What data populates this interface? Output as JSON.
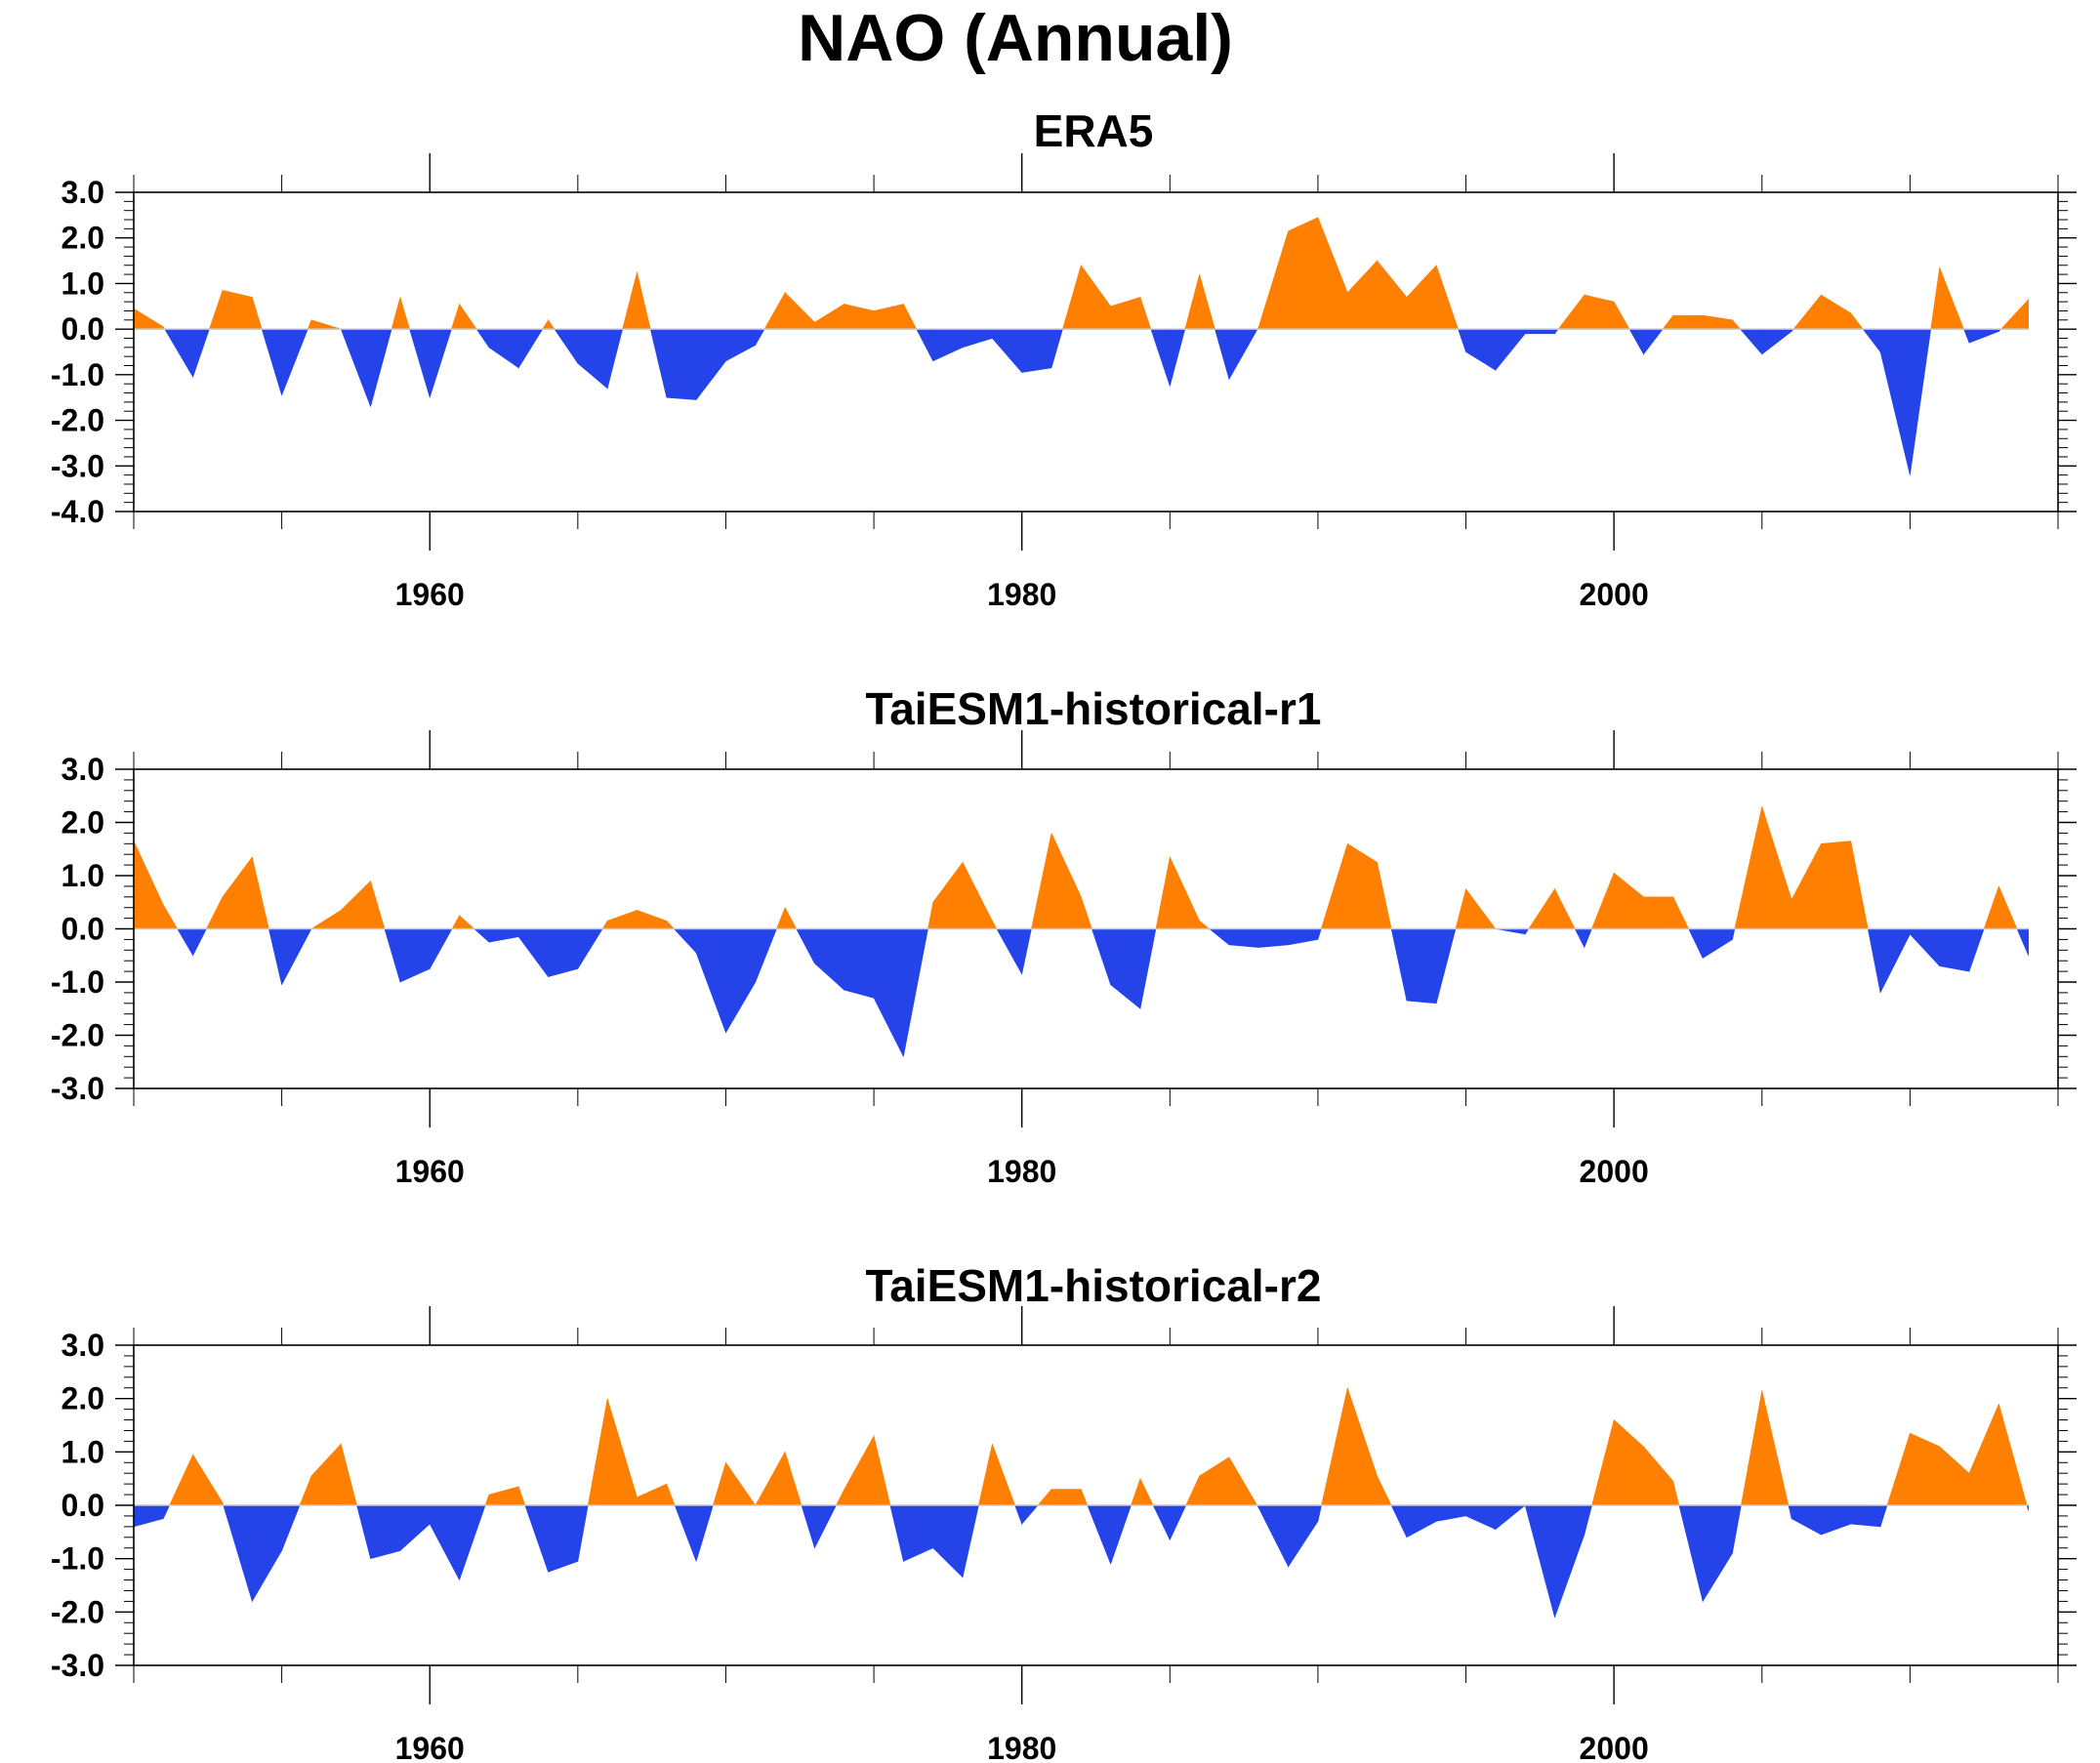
{
  "figure": {
    "title": "NAO (Annual)"
  },
  "colors": {
    "positive": "#ff8000",
    "negative": "#2444ea",
    "zero_line": "#c8c8c8",
    "axes": "#000000"
  },
  "chart_data": [
    {
      "type": "area",
      "title": "ERA5",
      "x_start": 1950,
      "x_end": 2014,
      "xlim": [
        1950,
        2015
      ],
      "ylim": [
        -4.0,
        3.0
      ],
      "yticks": [
        "3.0",
        "2.0",
        "1.0",
        "0.0",
        "-1.0",
        "-2.0",
        "-3.0",
        "-4.0"
      ],
      "xticks": [
        "1960",
        "1980",
        "2000"
      ],
      "values": [
        0.45,
        0.05,
        -1.05,
        0.85,
        0.7,
        -1.45,
        0.2,
        0.0,
        -1.7,
        0.7,
        -1.5,
        0.55,
        -0.4,
        -0.85,
        0.2,
        -0.75,
        -1.3,
        1.25,
        -1.5,
        -1.55,
        -0.7,
        -0.35,
        0.8,
        0.15,
        0.55,
        0.4,
        0.55,
        -0.7,
        -0.4,
        -0.2,
        -0.95,
        -0.85,
        1.4,
        0.5,
        0.7,
        -1.25,
        1.2,
        -1.1,
        0.05,
        2.15,
        2.45,
        0.8,
        1.5,
        0.7,
        1.4,
        -0.5,
        -0.9,
        -0.1,
        -0.1,
        0.75,
        0.6,
        -0.55,
        0.3,
        0.3,
        0.2,
        -0.55,
        -0.05,
        0.75,
        0.35,
        -0.5,
        -3.2,
        1.35,
        -0.3,
        -0.05,
        0.65
      ]
    },
    {
      "type": "area",
      "title": "TaiESM1-historical-r1",
      "x_start": 1950,
      "x_end": 2014,
      "xlim": [
        1950,
        2015
      ],
      "ylim": [
        -3.0,
        3.0
      ],
      "yticks": [
        "3.0",
        "2.0",
        "1.0",
        "0.0",
        "-1.0",
        "-2.0",
        "-3.0"
      ],
      "xticks": [
        "1960",
        "1980",
        "2000"
      ],
      "values": [
        1.65,
        0.45,
        -0.5,
        0.6,
        1.35,
        -1.05,
        0.0,
        0.35,
        0.9,
        -1.0,
        -0.75,
        0.25,
        -0.25,
        -0.15,
        -0.9,
        -0.75,
        0.15,
        0.35,
        0.15,
        -0.45,
        -1.95,
        -1.0,
        0.4,
        -0.65,
        -1.15,
        -1.3,
        -2.4,
        0.5,
        1.25,
        0.15,
        -0.85,
        1.8,
        0.6,
        -1.05,
        -1.5,
        1.35,
        0.15,
        -0.3,
        -0.35,
        -0.3,
        -0.2,
        1.6,
        1.25,
        -1.35,
        -1.4,
        0.75,
        0.0,
        -0.1,
        0.75,
        -0.35,
        1.05,
        0.6,
        0.6,
        -0.55,
        -0.2,
        2.3,
        0.55,
        1.6,
        1.65,
        -1.2,
        -0.1,
        -0.7,
        -0.8,
        0.8,
        -0.5
      ]
    },
    {
      "type": "area",
      "title": "TaiESM1-historical-r2",
      "x_start": 1950,
      "x_end": 2014,
      "xlim": [
        1950,
        2015
      ],
      "ylim": [
        -3.0,
        3.0
      ],
      "yticks": [
        "3.0",
        "2.0",
        "1.0",
        "0.0",
        "-1.0",
        "-2.0",
        "-3.0"
      ],
      "xticks": [
        "1960",
        "1980",
        "2000"
      ],
      "values": [
        -0.4,
        -0.25,
        0.95,
        0.05,
        -1.8,
        -0.85,
        0.55,
        1.15,
        -1.0,
        -0.85,
        -0.35,
        -1.4,
        0.2,
        0.35,
        -1.25,
        -1.05,
        2.0,
        0.15,
        0.4,
        -1.05,
        0.8,
        0.0,
        1.0,
        -0.8,
        0.3,
        1.3,
        -1.05,
        -0.8,
        -1.35,
        1.15,
        -0.35,
        0.3,
        0.3,
        -1.1,
        0.5,
        -0.65,
        0.55,
        0.9,
        -0.05,
        -1.15,
        -0.3,
        2.2,
        0.55,
        -0.6,
        -0.3,
        -0.2,
        -0.45,
        0.0,
        -2.1,
        -0.55,
        1.6,
        1.1,
        0.45,
        -1.8,
        -0.9,
        2.15,
        -0.25,
        -0.55,
        -0.35,
        -0.4,
        1.35,
        1.1,
        0.6,
        1.9,
        -0.1
      ]
    }
  ]
}
